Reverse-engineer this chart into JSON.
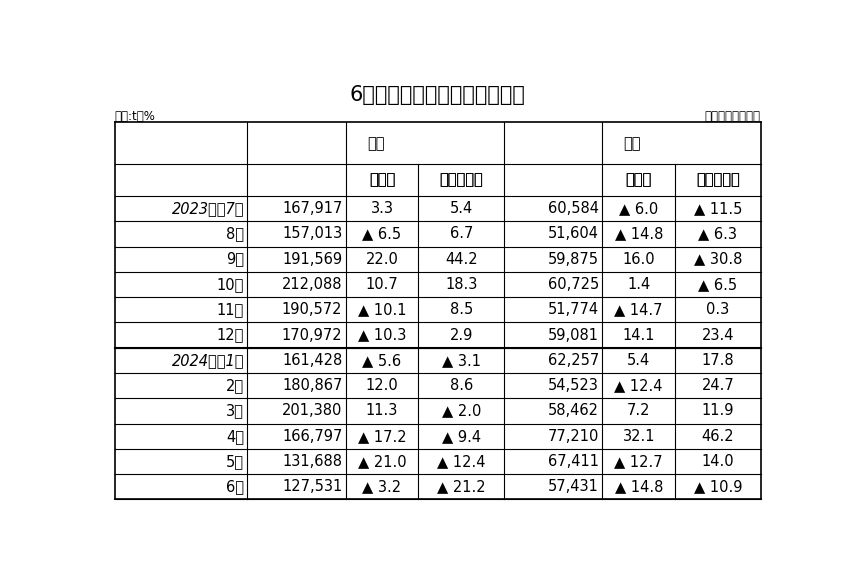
{
  "title": "6月のエチレン換算輸出入実績",
  "unit_label": "単位:t，%",
  "source_label": "石油化学工業協会",
  "rows": [
    [
      "2023年　7月",
      "167,917",
      "3.3",
      "5.4",
      "60,584",
      "▲ 6.0",
      "▲ 11.5"
    ],
    [
      "8月",
      "157,013",
      "▲ 6.5",
      "6.7",
      "51,604",
      "▲ 14.8",
      "▲ 6.3"
    ],
    [
      "9月",
      "191,569",
      "22.0",
      "44.2",
      "59,875",
      "16.0",
      "▲ 30.8"
    ],
    [
      "10月",
      "212,088",
      "10.7",
      "18.3",
      "60,725",
      "1.4",
      "▲ 6.5"
    ],
    [
      "11月",
      "190,572",
      "▲ 10.1",
      "8.5",
      "51,774",
      "▲ 14.7",
      "0.3"
    ],
    [
      "12月",
      "170,972",
      "▲ 10.3",
      "2.9",
      "59,081",
      "14.1",
      "23.4"
    ],
    [
      "2024年　1月",
      "161,428",
      "▲ 5.6",
      "▲ 3.1",
      "62,257",
      "5.4",
      "17.8"
    ],
    [
      "2月",
      "180,867",
      "12.0",
      "8.6",
      "54,523",
      "▲ 12.4",
      "24.7"
    ],
    [
      "3月",
      "201,380",
      "11.3",
      "▲ 2.0",
      "58,462",
      "7.2",
      "11.9"
    ],
    [
      "4月",
      "166,797",
      "▲ 17.2",
      "▲ 9.4",
      "77,210",
      "32.1",
      "46.2"
    ],
    [
      "5月",
      "131,688",
      "▲ 21.0",
      "▲ 12.4",
      "67,411",
      "▲ 12.7",
      "14.0"
    ],
    [
      "6月",
      "127,531",
      "▲ 3.2",
      "▲ 21.2",
      "57,431",
      "▲ 14.8",
      "▲ 10.9"
    ]
  ],
  "col_widths_ratio": [
    1.55,
    1.15,
    0.85,
    1.0,
    1.15,
    0.85,
    1.0
  ],
  "background_color": "#ffffff",
  "text_color": "#000000",
  "title_fontsize": 15,
  "label_fontsize": 8.5,
  "header_fontsize": 10.5,
  "table_fontsize": 10.5
}
